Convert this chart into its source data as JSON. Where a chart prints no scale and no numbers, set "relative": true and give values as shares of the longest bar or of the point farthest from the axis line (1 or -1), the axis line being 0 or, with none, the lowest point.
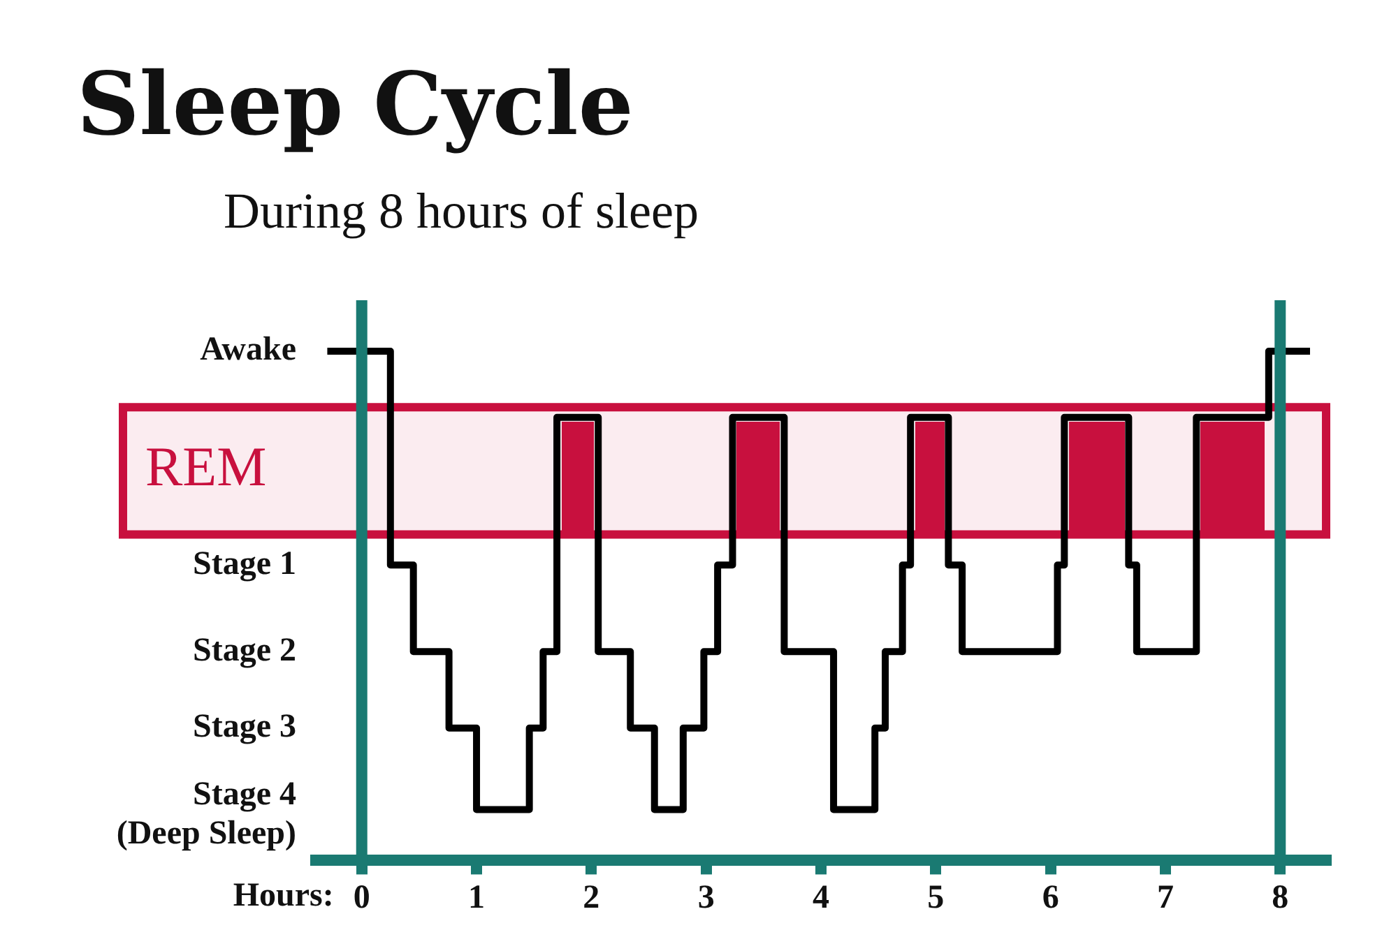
{
  "chart_data": {
    "type": "step",
    "title": "Sleep Cycle",
    "subtitle": "During 8 hours of sleep",
    "xlabel": "Hours:",
    "relative": true,
    "xlim": [
      -0.4,
      8.4
    ],
    "xticks": [
      0,
      1,
      2,
      3,
      4,
      5,
      6,
      7,
      8
    ],
    "series": [
      {
        "color": "#000000",
        "x": [
          -0.3,
          0.25,
          0.45,
          0.76,
          1.0,
          1.46,
          1.58,
          1.7,
          2.06,
          2.34,
          2.55,
          2.8,
          2.98,
          3.1,
          3.23,
          3.68,
          4.11,
          4.47,
          4.56,
          4.71,
          4.78,
          5.11,
          5.23,
          6.06,
          6.12,
          6.68,
          6.75,
          7.27,
          7.9,
          8.26
        ],
        "values": [
          1,
          0.58,
          0.41,
          0.26,
          0.1,
          0.26,
          0.41,
          0.87,
          0.41,
          0.26,
          0.1,
          0.26,
          0.41,
          0.58,
          0.87,
          0.41,
          0.1,
          0.26,
          0.41,
          0.58,
          0.87,
          0.58,
          0.41,
          0.58,
          0.87,
          0.58,
          0.41,
          0.87,
          1,
          1
        ]
      }
    ],
    "bands": [
      {
        "axis": "y",
        "from": 0.64,
        "to": 0.89,
        "label": "REM",
        "color": "#c8103e"
      }
    ],
    "ref_lines": [
      {
        "axis": "x",
        "value": 0,
        "color": "#1a7a72"
      },
      {
        "axis": "x",
        "value": 8,
        "color": "#1a7a72"
      }
    ],
    "annotations": [
      "Awake",
      "Stage 1",
      "Stage 2",
      "Stage 3",
      "Stage 4\n(Deep Sleep)"
    ],
    "grid": false,
    "legend": false,
    "marker": "none",
    "line_style": "solid"
  }
}
